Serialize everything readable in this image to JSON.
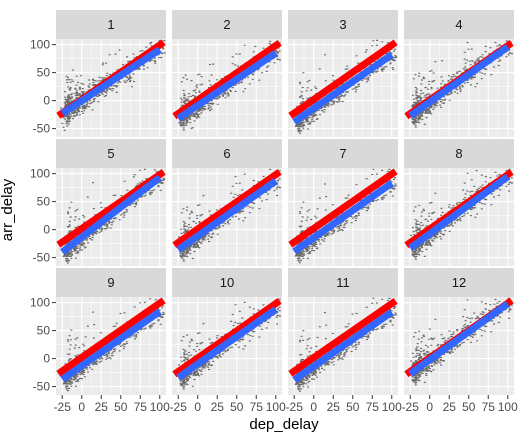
{
  "chart_data": {
    "type": "scatter",
    "facet_variable": "",
    "facets": [
      {
        "label": "1",
        "red_line": [
          -30,
          -27,
          105,
          104
        ],
        "blue_line": [
          -25,
          -23,
          100,
          91
        ]
      },
      {
        "label": "2",
        "red_line": [
          -30,
          -28,
          105,
          103
        ],
        "blue_line": [
          -25,
          -32,
          100,
          85
        ]
      },
      {
        "label": "3",
        "red_line": [
          -30,
          -27,
          105,
          104
        ],
        "blue_line": [
          -25,
          -38,
          100,
          82
        ]
      },
      {
        "label": "4",
        "red_line": [
          -30,
          -28,
          105,
          103
        ],
        "blue_line": [
          -25,
          -27,
          100,
          96
        ]
      },
      {
        "label": "5",
        "red_line": [
          -30,
          -27,
          105,
          103
        ],
        "blue_line": [
          -25,
          -40,
          100,
          93
        ]
      },
      {
        "label": "6",
        "red_line": [
          -30,
          -28,
          105,
          103
        ],
        "blue_line": [
          -25,
          -36,
          100,
          87
        ]
      },
      {
        "label": "7",
        "red_line": [
          -30,
          -27,
          105,
          104
        ],
        "blue_line": [
          -25,
          -39,
          100,
          83
        ]
      },
      {
        "label": "8",
        "red_line": [
          -30,
          -28,
          105,
          103
        ],
        "blue_line": [
          -25,
          -33,
          100,
          95
        ]
      },
      {
        "label": "9",
        "red_line": [
          -30,
          -27,
          105,
          104
        ],
        "blue_line": [
          -25,
          -37,
          100,
          84
        ]
      },
      {
        "label": "10",
        "red_line": [
          -30,
          -28,
          105,
          103
        ],
        "blue_line": [
          -25,
          -34,
          100,
          88
        ]
      },
      {
        "label": "11",
        "red_line": [
          -30,
          -27,
          105,
          103
        ],
        "blue_line": [
          -25,
          -38,
          100,
          83
        ]
      },
      {
        "label": "12",
        "red_line": [
          -30,
          -28,
          105,
          104
        ],
        "blue_line": [
          -25,
          -27,
          100,
          98
        ]
      }
    ],
    "xlabel": "dep_delay",
    "ylabel": "arr_delay",
    "x_ticks": [
      -25,
      0,
      25,
      50,
      75,
      100
    ],
    "x_tick_labels": [
      "-25",
      "0",
      "25",
      "50",
      "75",
      "100"
    ],
    "y_ticks": [
      -50,
      0,
      50,
      100
    ],
    "y_tick_labels": [
      "-50",
      "0",
      "50",
      "100"
    ],
    "xlim": [
      -33,
      108
    ],
    "ylim": [
      -65,
      110
    ],
    "grid": true,
    "series_colors": {
      "points": "#000000",
      "red_line": "#ff0000",
      "blue_line": "#3366ff"
    },
    "panel_background": "#ebebeb",
    "strip_background": "#d9d9d9"
  }
}
